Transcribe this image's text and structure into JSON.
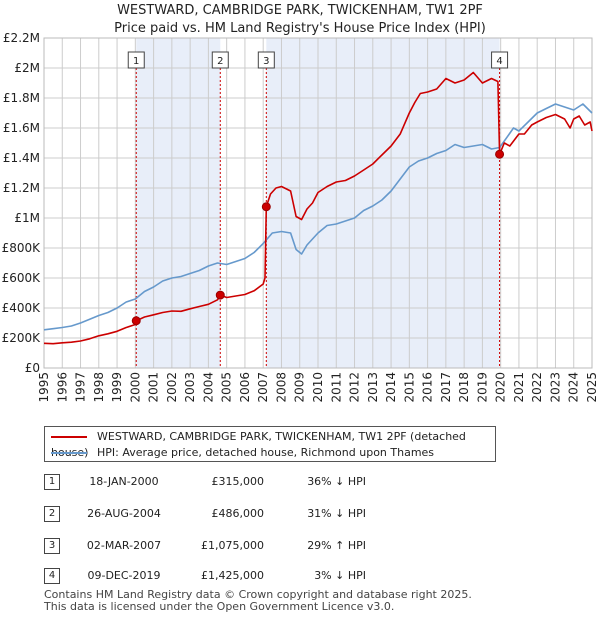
{
  "title_line1": "WESTWARD, CAMBRIDGE PARK, TWICKENHAM, TW1 2PF",
  "title_line2": "Price paid vs. HM Land Registry's House Price Index (HPI)",
  "colors": {
    "property": "#cc0000",
    "hpi": "#6699cc",
    "shade": "#e8eef9",
    "grid": "#cccccc",
    "vline": "#cc0000"
  },
  "legend": {
    "property_label": "WESTWARD, CAMBRIDGE PARK, TWICKENHAM, TW1 2PF (detached house)",
    "hpi_label": "HPI: Average price, detached house, Richmond upon Thames"
  },
  "sales": [
    {
      "num": "1",
      "date": "18-JAN-2000",
      "price": "£315,000",
      "hpi_rel": "36% ↓ HPI"
    },
    {
      "num": "2",
      "date": "26-AUG-2004",
      "price": "£486,000",
      "hpi_rel": "31% ↓ HPI"
    },
    {
      "num": "3",
      "date": "02-MAR-2007",
      "price": "£1,075,000",
      "hpi_rel": "29% ↑ HPI"
    },
    {
      "num": "4",
      "date": "09-DEC-2019",
      "price": "£1,425,000",
      "hpi_rel": "3% ↓ HPI"
    }
  ],
  "footer_line1": "Contains HM Land Registry data © Crown copyright and database right 2025.",
  "footer_line2": "This data is licensed under the Open Government Licence v3.0.",
  "chart_data": {
    "type": "line",
    "xlabel": "",
    "ylabel": "",
    "xlim": [
      1995,
      2025
    ],
    "ylim": [
      0,
      2200000
    ],
    "yticks": [
      0,
      200000,
      400000,
      600000,
      800000,
      1000000,
      1200000,
      1400000,
      1600000,
      1800000,
      2000000,
      2200000
    ],
    "ytick_labels": [
      "£0",
      "£200K",
      "£400K",
      "£600K",
      "£800K",
      "£1M",
      "£1.2M",
      "£1.4M",
      "£1.6M",
      "£1.8M",
      "£2M",
      "£2.2M"
    ],
    "xticks": [
      1995,
      1996,
      1997,
      1998,
      1999,
      2000,
      2001,
      2002,
      2003,
      2004,
      2005,
      2006,
      2007,
      2008,
      2009,
      2010,
      2011,
      2012,
      2013,
      2014,
      2015,
      2016,
      2017,
      2018,
      2019,
      2020,
      2021,
      2022,
      2023,
      2024,
      2025
    ],
    "xtick_labels": [
      "1995",
      "1996",
      "1997",
      "1998",
      "1999",
      "2000",
      "2001",
      "2002",
      "2003",
      "2004",
      "2005",
      "2006",
      "2007",
      "2008",
      "2009",
      "2010",
      "2011",
      "2012",
      "2013",
      "2014",
      "2015",
      "2016",
      "2017",
      "2018",
      "2019",
      "2020",
      "2021",
      "2022",
      "2023",
      "2024",
      "2025"
    ],
    "shaded_ranges": [
      [
        2000.05,
        2004.65
      ],
      [
        2007.17,
        2019.94
      ]
    ],
    "grid": true,
    "markers": [
      {
        "label": "1",
        "x": 2000.05,
        "y": 315000
      },
      {
        "label": "2",
        "x": 2004.65,
        "y": 486000
      },
      {
        "label": "3",
        "x": 2007.17,
        "y": 1075000
      },
      {
        "label": "4",
        "x": 2019.94,
        "y": 1425000
      }
    ],
    "series": [
      {
        "name": "WESTWARD, CAMBRIDGE PARK, TWICKENHAM, TW1 2PF (detached house)",
        "x": [
          1995.0,
          1995.5,
          1996.0,
          1996.5,
          1997.0,
          1997.5,
          1998.0,
          1998.5,
          1999.0,
          1999.5,
          2000.0,
          2000.05,
          2000.5,
          2001.0,
          2001.5,
          2002.0,
          2002.5,
          2003.0,
          2003.5,
          2004.0,
          2004.5,
          2004.65,
          2005.0,
          2005.5,
          2006.0,
          2006.5,
          2007.0,
          2007.1,
          2007.17,
          2007.4,
          2007.7,
          2008.0,
          2008.5,
          2008.8,
          2009.1,
          2009.4,
          2009.7,
          2010.0,
          2010.5,
          2011.0,
          2011.5,
          2012.0,
          2012.5,
          2013.0,
          2013.5,
          2014.0,
          2014.5,
          2015.0,
          2015.3,
          2015.6,
          2016.0,
          2016.5,
          2017.0,
          2017.5,
          2018.0,
          2018.5,
          2019.0,
          2019.5,
          2019.85,
          2019.94,
          2020.2,
          2020.5,
          2021.0,
          2021.3,
          2021.7,
          2022.0,
          2022.5,
          2023.0,
          2023.5,
          2023.8,
          2024.0,
          2024.3,
          2024.6,
          2024.9,
          2025.0
        ],
        "y": [
          165000,
          162000,
          168000,
          172000,
          180000,
          195000,
          215000,
          228000,
          245000,
          270000,
          290000,
          315000,
          340000,
          355000,
          370000,
          380000,
          378000,
          395000,
          410000,
          425000,
          455000,
          486000,
          470000,
          480000,
          490000,
          515000,
          560000,
          600000,
          1075000,
          1160000,
          1200000,
          1210000,
          1180000,
          1010000,
          990000,
          1060000,
          1100000,
          1170000,
          1210000,
          1240000,
          1250000,
          1280000,
          1320000,
          1360000,
          1420000,
          1480000,
          1560000,
          1700000,
          1770000,
          1830000,
          1840000,
          1860000,
          1930000,
          1900000,
          1920000,
          1970000,
          1900000,
          1930000,
          1910000,
          1425000,
          1500000,
          1480000,
          1560000,
          1560000,
          1620000,
          1640000,
          1670000,
          1690000,
          1660000,
          1600000,
          1660000,
          1680000,
          1620000,
          1640000,
          1580000
        ]
      },
      {
        "name": "HPI: Average price, detached house, Richmond upon Thames",
        "x": [
          1995.0,
          1995.5,
          1996.0,
          1996.5,
          1997.0,
          1997.5,
          1998.0,
          1998.5,
          1999.0,
          1999.5,
          2000.0,
          2000.5,
          2001.0,
          2001.5,
          2002.0,
          2002.5,
          2003.0,
          2003.5,
          2004.0,
          2004.5,
          2005.0,
          2005.5,
          2006.0,
          2006.5,
          2007.0,
          2007.5,
          2008.0,
          2008.5,
          2008.8,
          2009.1,
          2009.4,
          2009.7,
          2010.0,
          2010.5,
          2011.0,
          2011.5,
          2012.0,
          2012.5,
          2013.0,
          2013.5,
          2014.0,
          2014.5,
          2015.0,
          2015.5,
          2016.0,
          2016.5,
          2017.0,
          2017.5,
          2018.0,
          2018.5,
          2019.0,
          2019.5,
          2019.94,
          2020.3,
          2020.7,
          2021.0,
          2021.5,
          2022.0,
          2022.5,
          2023.0,
          2023.5,
          2024.0,
          2024.5,
          2025.0
        ],
        "y": [
          255000,
          262000,
          270000,
          280000,
          300000,
          325000,
          350000,
          370000,
          400000,
          440000,
          460000,
          510000,
          540000,
          580000,
          600000,
          610000,
          630000,
          650000,
          680000,
          700000,
          690000,
          710000,
          730000,
          770000,
          830000,
          900000,
          910000,
          900000,
          790000,
          760000,
          820000,
          860000,
          900000,
          950000,
          960000,
          980000,
          1000000,
          1050000,
          1080000,
          1120000,
          1180000,
          1260000,
          1340000,
          1380000,
          1400000,
          1430000,
          1450000,
          1490000,
          1470000,
          1480000,
          1490000,
          1460000,
          1470000,
          1530000,
          1600000,
          1580000,
          1640000,
          1700000,
          1730000,
          1760000,
          1740000,
          1720000,
          1760000,
          1700000
        ]
      }
    ]
  }
}
